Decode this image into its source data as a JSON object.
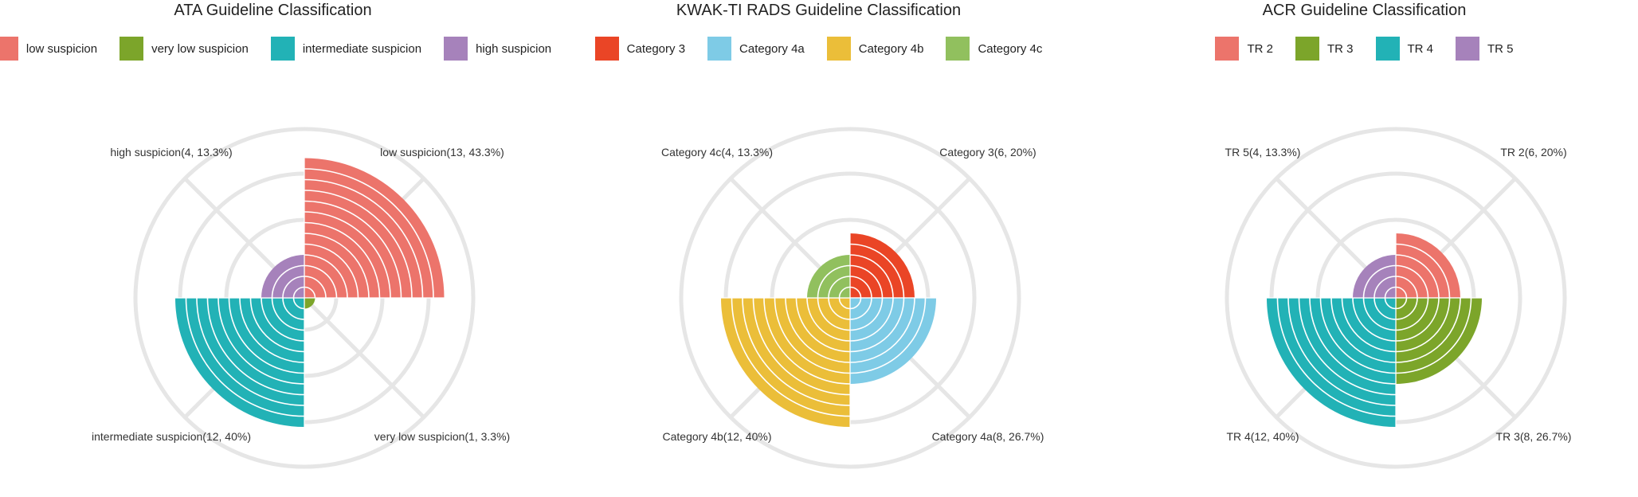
{
  "chart_data": [
    {
      "type": "polar-area",
      "title": "ATA Guideline Classification",
      "categories": [
        "low suspicion",
        "very low suspicion",
        "intermediate suspicion",
        "high suspicion"
      ],
      "values": [
        13,
        1,
        12,
        4
      ],
      "percents": [
        43.3,
        3.3,
        40,
        13.3
      ],
      "colors": [
        "#ec746b",
        "#7ca52a",
        "#22b2b6",
        "#a682bb"
      ],
      "slice_labels": [
        "low suspicion(13, 43.3%)",
        "very low suspicion(1, 3.3%)",
        "intermediate suspicion(12, 40%)",
        "high suspicion(4, 13.3%)"
      ],
      "legend_position": "top",
      "grid": true
    },
    {
      "type": "polar-area",
      "title": "KWAK-TI RADS Guideline Classification",
      "categories": [
        "Category 3",
        "Category 4a",
        "Category 4b",
        "Category 4c"
      ],
      "values": [
        6,
        8,
        12,
        4
      ],
      "percents": [
        20,
        26.7,
        40,
        13.3
      ],
      "colors": [
        "#ea4526",
        "#7ecbe6",
        "#ebbe39",
        "#91c05e"
      ],
      "slice_labels": [
        "Category 3(6, 20%)",
        "Category 4a(8, 26.7%)",
        "Category 4b(12, 40%)",
        "Category 4c(4, 13.3%)"
      ],
      "legend_position": "top",
      "grid": true
    },
    {
      "type": "polar-area",
      "title": "ACR Guideline Classification",
      "categories": [
        "TR 2",
        "TR 3",
        "TR 4",
        "TR 5"
      ],
      "values": [
        6,
        8,
        12,
        4
      ],
      "percents": [
        20,
        26.7,
        40,
        13.3
      ],
      "colors": [
        "#ec746b",
        "#7ca52a",
        "#22b2b6",
        "#a682bb"
      ],
      "slice_labels": [
        "TR 2(6, 20%)",
        "TR 3(8, 26.7%)",
        "TR 4(12, 40%)",
        "TR 5(4, 13.3%)"
      ],
      "legend_position": "top",
      "grid": true
    }
  ]
}
